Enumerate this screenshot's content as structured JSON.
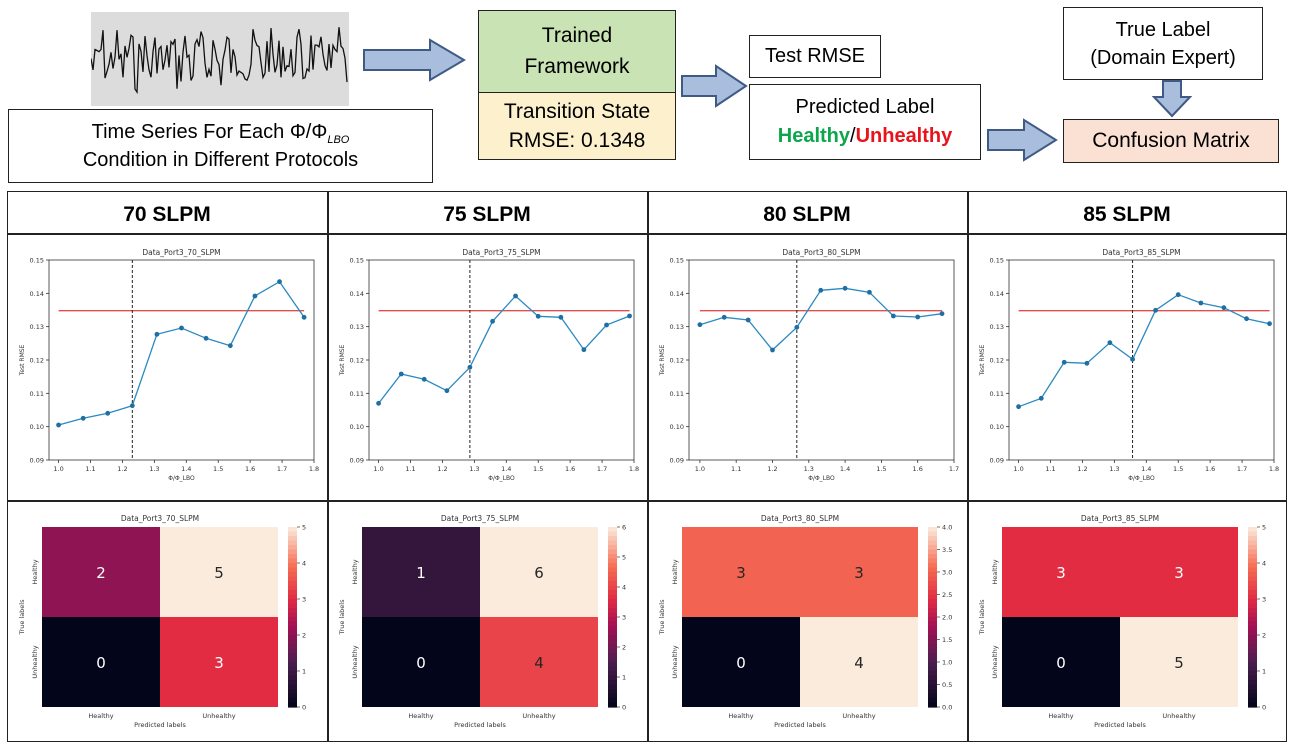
{
  "colors": {
    "green_box": "#c9e3b4",
    "yellow_box": "#fdf0cc",
    "peach_box": "#fae1d3",
    "arrow_fill": "#a9bddd",
    "arrow_stroke": "#3f5a85",
    "healthy_green": "#0ca74a",
    "unhealthy_red": "#e8141c",
    "line_blue": "#2a8ac0",
    "threshold_red": "#dc5050"
  },
  "flow": {
    "timeseries_caption_line1": "Time Series For Each Φ/Φ",
    "timeseries_caption_sub": "LBO",
    "timeseries_caption_line2": "Condition in Different Protocols",
    "trained_line1": "Trained",
    "trained_line2": "Framework",
    "transition_line1": "Transition State",
    "transition_line2": "RMSE: 0.1348",
    "test_rmse": "Test RMSE",
    "predicted_label": "Predicted Label",
    "healthy": "Healthy",
    "slash": "/",
    "unhealthy": "Unhealthy",
    "true_label_line1": "True Label",
    "true_label_line2": "(Domain Expert)",
    "confusion_matrix": "Confusion Matrix"
  },
  "panels": [
    {
      "header": "70 SLPM"
    },
    {
      "header": "75 SLPM"
    },
    {
      "header": "80 SLPM"
    },
    {
      "header": "85 SLPM"
    }
  ],
  "chart_data": [
    {
      "type": "line",
      "title": "Data_Port3_70_SLPM",
      "xlabel": "Φ/Φ_LBO",
      "ylabel": "Test RMSE",
      "x": [
        1.0,
        1.077,
        1.154,
        1.231,
        1.308,
        1.385,
        1.462,
        1.538,
        1.615,
        1.692,
        1.769
      ],
      "y": [
        0.1005,
        0.1025,
        0.104,
        0.1063,
        0.1277,
        0.1296,
        0.1265,
        0.1243,
        0.1392,
        0.1435,
        0.1328
      ],
      "threshold": 0.1348,
      "transition_x": 1.231,
      "xlim": [
        0.97,
        1.8
      ],
      "ylim": [
        0.09,
        0.15
      ],
      "xticks": [
        "1.0",
        "1.1",
        "1.2",
        "1.3",
        "1.4",
        "1.5",
        "1.6",
        "1.7",
        "1.8"
      ],
      "yticks": [
        "0.09",
        "0.10",
        "0.11",
        "0.12",
        "0.13",
        "0.14",
        "0.15"
      ]
    },
    {
      "type": "line",
      "title": "Data_Port3_75_SLPM",
      "xlabel": "Φ/Φ_LBO",
      "ylabel": "Test RMSE",
      "x": [
        1.0,
        1.071,
        1.143,
        1.214,
        1.286,
        1.357,
        1.429,
        1.5,
        1.571,
        1.643,
        1.714,
        1.786
      ],
      "y": [
        0.107,
        0.1158,
        0.1142,
        0.1108,
        0.1178,
        0.1316,
        0.1392,
        0.1331,
        0.1328,
        0.1231,
        0.1305,
        0.1332
      ],
      "threshold": 0.1348,
      "transition_x": 1.286,
      "xlim": [
        0.97,
        1.8
      ],
      "ylim": [
        0.09,
        0.15
      ],
      "xticks": [
        "1.0",
        "1.1",
        "1.2",
        "1.3",
        "1.4",
        "1.5",
        "1.6",
        "1.7",
        "1.8"
      ],
      "yticks": [
        "0.09",
        "0.10",
        "0.11",
        "0.12",
        "0.13",
        "0.14",
        "0.15"
      ]
    },
    {
      "type": "line",
      "title": "Data_Port3_80_SLPM",
      "xlabel": "Φ/Φ_LBO",
      "ylabel": "Test RMSE",
      "x": [
        1.0,
        1.067,
        1.133,
        1.2,
        1.267,
        1.333,
        1.4,
        1.467,
        1.533,
        1.6,
        1.667
      ],
      "y": [
        0.1306,
        0.1328,
        0.132,
        0.123,
        0.1298,
        0.1409,
        0.1415,
        0.1403,
        0.1332,
        0.1329,
        0.1339
      ],
      "threshold": 0.1348,
      "transition_x": 1.267,
      "xlim": [
        0.97,
        1.7
      ],
      "ylim": [
        0.09,
        0.15
      ],
      "xticks": [
        "1.0",
        "1.1",
        "1.2",
        "1.3",
        "1.4",
        "1.5",
        "1.6",
        "1.7"
      ],
      "yticks": [
        "0.09",
        "0.10",
        "0.11",
        "0.12",
        "0.13",
        "0.14",
        "0.15"
      ]
    },
    {
      "type": "line",
      "title": "Data_Port3_85_SLPM",
      "xlabel": "Φ/Φ_LBO",
      "ylabel": "Test RMSE",
      "x": [
        1.0,
        1.071,
        1.143,
        1.214,
        1.286,
        1.357,
        1.429,
        1.5,
        1.571,
        1.643,
        1.714,
        1.786
      ],
      "y": [
        0.106,
        0.1085,
        0.1193,
        0.119,
        0.1252,
        0.1202,
        0.1349,
        0.1396,
        0.1371,
        0.1357,
        0.1324,
        0.1309
      ],
      "threshold": 0.1348,
      "transition_x": 1.357,
      "xlim": [
        0.97,
        1.8
      ],
      "ylim": [
        0.09,
        0.15
      ],
      "xticks": [
        "1.0",
        "1.1",
        "1.2",
        "1.3",
        "1.4",
        "1.5",
        "1.6",
        "1.7",
        "1.8"
      ],
      "yticks": [
        "0.09",
        "0.10",
        "0.11",
        "0.12",
        "0.13",
        "0.14",
        "0.15"
      ]
    },
    {
      "type": "heatmap",
      "title": "Data_Port3_70_SLPM",
      "xlabel": "Predicted labels",
      "ylabel": "True labels",
      "row_labels": [
        "Healthy",
        "Unhealthy"
      ],
      "col_labels": [
        "Healthy",
        "Unhealthy"
      ],
      "matrix": [
        [
          2,
          5
        ],
        [
          0,
          3
        ]
      ],
      "vmin": 0,
      "vmax": 5,
      "colorbar_ticks": [
        "0",
        "1",
        "2",
        "3",
        "4",
        "5"
      ]
    },
    {
      "type": "heatmap",
      "title": "Data_Port3_75_SLPM",
      "xlabel": "Predicted labels",
      "ylabel": "True labels",
      "row_labels": [
        "Healthy",
        "Unhealthy"
      ],
      "col_labels": [
        "Healthy",
        "Unhealthy"
      ],
      "matrix": [
        [
          1,
          6
        ],
        [
          0,
          4
        ]
      ],
      "vmin": 0,
      "vmax": 6,
      "colorbar_ticks": [
        "0",
        "1",
        "2",
        "3",
        "4",
        "5",
        "6"
      ]
    },
    {
      "type": "heatmap",
      "title": "Data_Port3_80_SLPM",
      "xlabel": "Predicted labels",
      "ylabel": "True labels",
      "row_labels": [
        "Healthy",
        "Unhealthy"
      ],
      "col_labels": [
        "Healthy",
        "Unhealthy"
      ],
      "matrix": [
        [
          3,
          3
        ],
        [
          0,
          4
        ]
      ],
      "vmin": 0,
      "vmax": 4,
      "colorbar_ticks": [
        "0.0",
        "0.5",
        "1.0",
        "1.5",
        "2.0",
        "2.5",
        "3.0",
        "3.5",
        "4.0"
      ]
    },
    {
      "type": "heatmap",
      "title": "Data_Port3_85_SLPM",
      "xlabel": "Predicted labels",
      "ylabel": "True labels",
      "row_labels": [
        "Healthy",
        "Unhealthy"
      ],
      "col_labels": [
        "Healthy",
        "Unhealthy"
      ],
      "matrix": [
        [
          3,
          3
        ],
        [
          0,
          5
        ]
      ],
      "vmin": 0,
      "vmax": 5,
      "colorbar_ticks": [
        "0",
        "1",
        "2",
        "3",
        "4",
        "5"
      ]
    }
  ]
}
